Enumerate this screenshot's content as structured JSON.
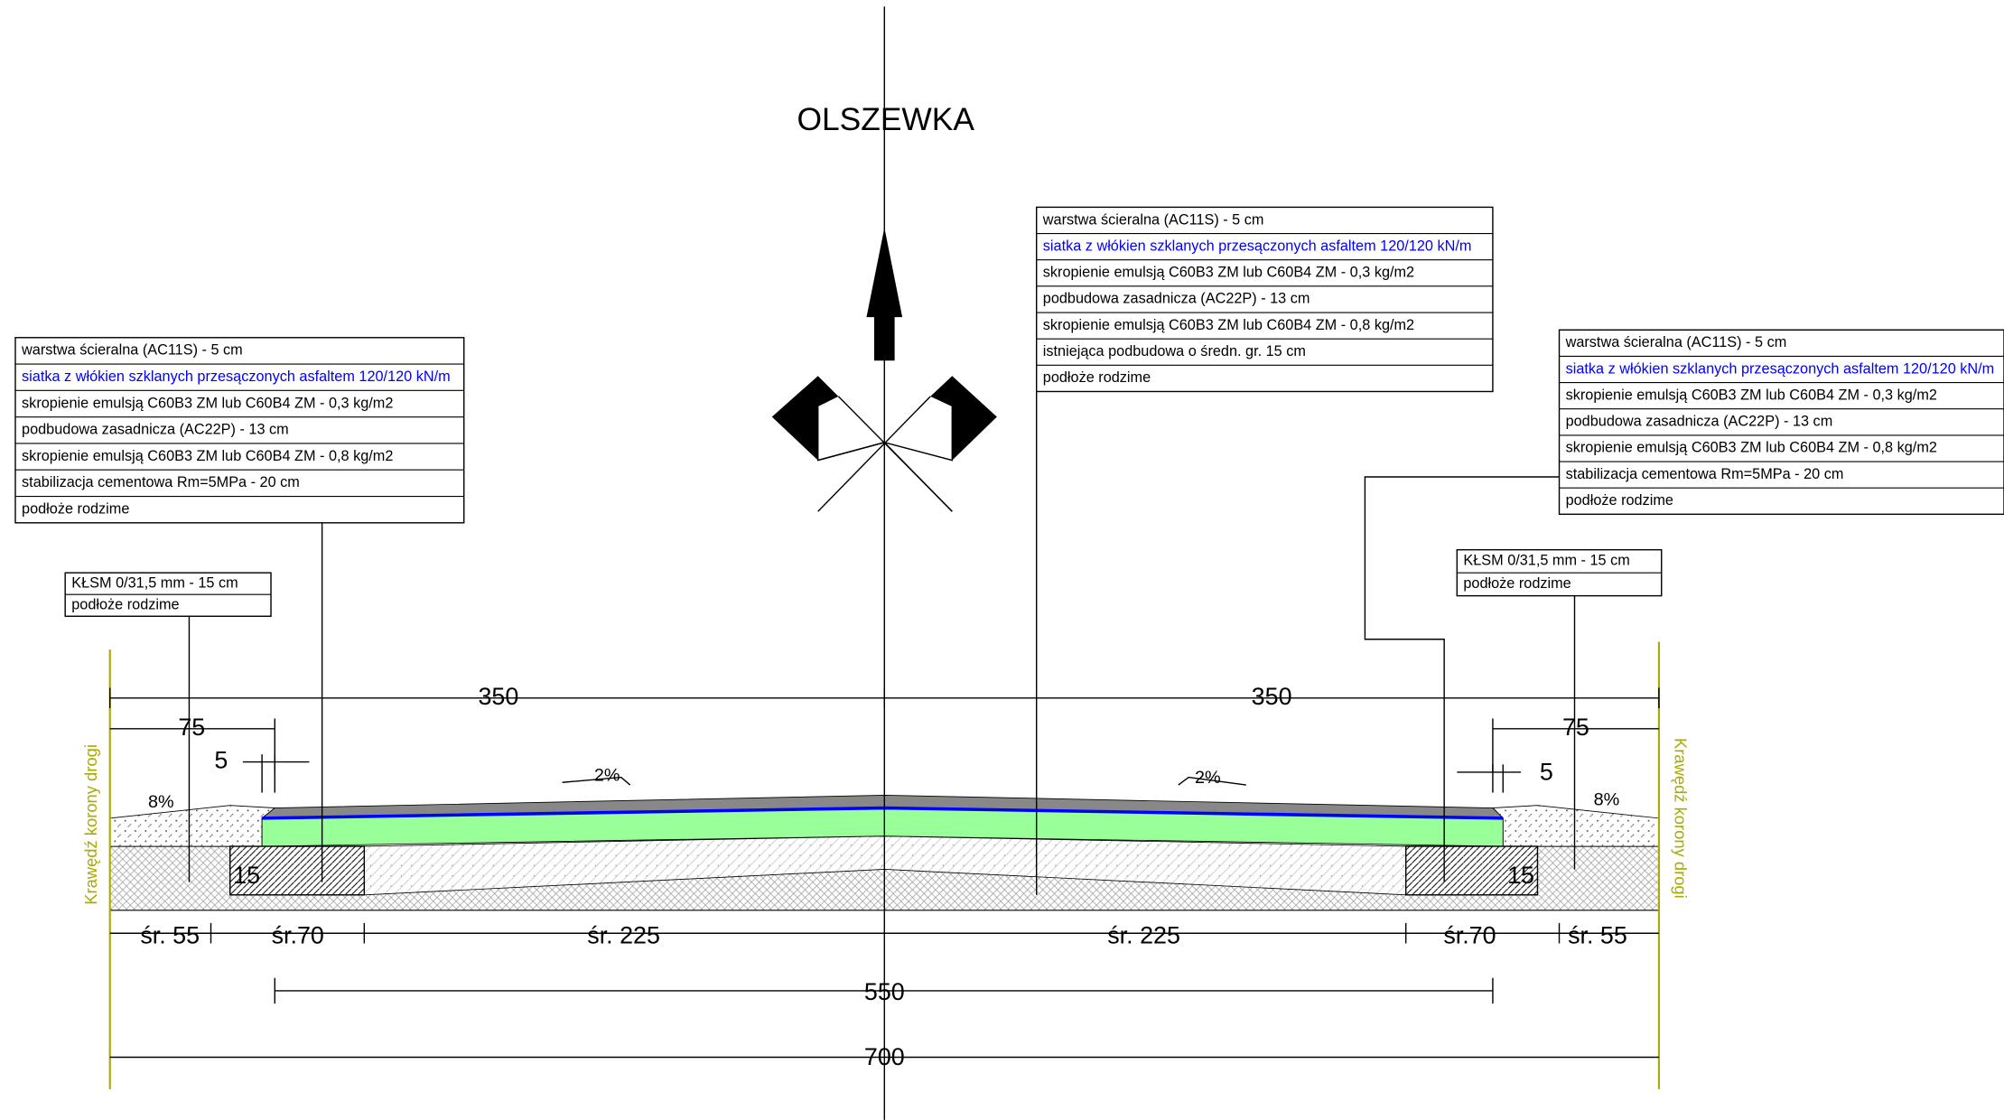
{
  "title": "OLSZEWKA",
  "layer_tables": [
    {
      "rows": [
        "warstwa ścieralna (AC11S) - 5 cm",
        "siatka z włókien szklanych przesączonych asfaltem 120/120 kN/m",
        "skropienie emulsją C60B3 ZM lub C60B4 ZM - 0,3 kg/m2",
        "podbudowa zasadnicza (AC22P) - 13 cm",
        "skropienie emulsją C60B3 ZM lub C60B4 ZM - 0,8 kg/m2",
        "stabilizacja cementowa Rm=5MPa - 20 cm",
        "podłoże rodzime"
      ]
    },
    {
      "rows": [
        "warstwa ścieralna (AC11S) - 5 cm",
        "siatka z włókien szklanych przesączonych asfaltem 120/120 kN/m",
        "skropienie emulsją C60B3 ZM lub C60B4 ZM - 0,3 kg/m2",
        "podbudowa zasadnicza (AC22P) - 13 cm",
        "skropienie emulsją C60B3 ZM lub C60B4 ZM - 0,8 kg/m2",
        "istniejąca podbudowa o średn. gr. 15 cm",
        "podłoże rodzime"
      ]
    },
    {
      "rows": [
        "warstwa ścieralna (AC11S) - 5 cm",
        "siatka z włókien szklanych przesączonych asfaltem 120/120 kN/m",
        "skropienie emulsją C60B3 ZM lub C60B4 ZM - 0,3 kg/m2",
        "podbudowa zasadnicza (AC22P) - 13 cm",
        "skropienie emulsją C60B3 ZM lub C60B4 ZM - 0,8 kg/m2",
        "stabilizacja cementowa Rm=5MPa - 20 cm",
        "podłoże rodzime"
      ]
    }
  ],
  "small_tables": [
    {
      "rows": [
        "KŁSM 0/31,5 mm - 15 cm",
        "podłoże rodzime"
      ]
    },
    {
      "rows": [
        "KŁSM 0/31,5 mm - 15 cm",
        "podłoże rodzime"
      ]
    }
  ],
  "dimensions": [
    "350",
    "350",
    "75",
    "75",
    "5",
    "5",
    "15",
    "15",
    "śr. 55",
    "śr.70",
    "śr. 225",
    "śr. 225",
    "śr.70",
    "śr. 55",
    "550",
    "700"
  ],
  "slopes": [
    "2%",
    "2%",
    "8%",
    "8%"
  ],
  "edge_labels": [
    "Krawędź korony drogi",
    "Krawędź korony drogi"
  ]
}
